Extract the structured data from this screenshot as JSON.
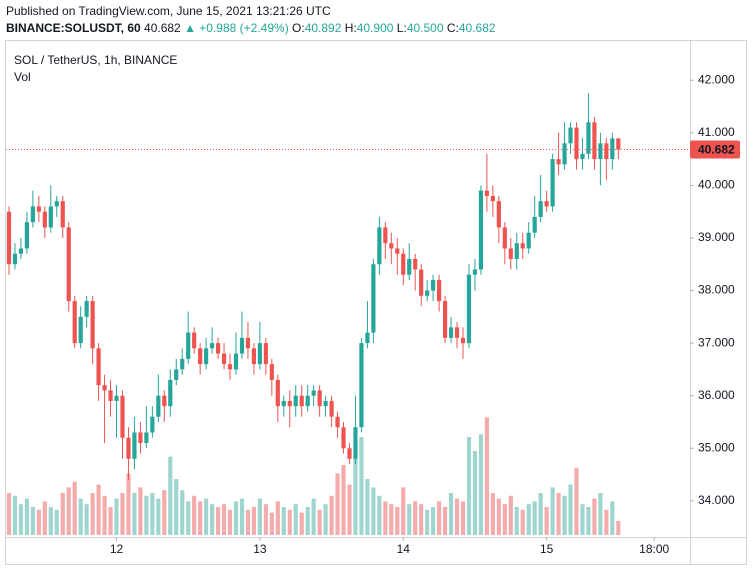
{
  "header": {
    "published": "Published on TradingView.com, June 15, 2021 13:21:26 UTC",
    "symbol": "BINANCE:SOLUSDT, 60",
    "last": "40.682",
    "change": "▲ +0.988 (+2.49%)",
    "ohlc": [
      {
        "label": "O:",
        "value": "40.892"
      },
      {
        "label": "H:",
        "value": "40.900"
      },
      {
        "label": "L:",
        "value": "40.500"
      },
      {
        "label": "C:",
        "value": "40.682"
      }
    ]
  },
  "chart_data": {
    "type": "candlestick",
    "title": "SOL / TetherUS, 1h, BINANCE",
    "volume_label": "Vol",
    "up_color": "#26a69a",
    "down_color": "#ef5350",
    "volume_up_color": "#9fd5cf",
    "volume_down_color": "#f3abab",
    "last_price": 40.682,
    "xlim": [
      -0.5,
      114
    ],
    "xticks": [
      {
        "value": 18,
        "label": "12"
      },
      {
        "value": 42,
        "label": "13"
      },
      {
        "value": 66,
        "label": "14"
      },
      {
        "value": 90,
        "label": "15"
      },
      {
        "value": 108,
        "label": "18:00"
      }
    ],
    "ylim": [
      33.35,
      42.67
    ],
    "yticks": [
      {
        "value": 34,
        "label": "34.000"
      },
      {
        "value": 35,
        "label": "35.000"
      },
      {
        "value": 36,
        "label": "36.000"
      },
      {
        "value": 37,
        "label": "37.000"
      },
      {
        "value": 38,
        "label": "38.000"
      },
      {
        "value": 39,
        "label": "39.000"
      },
      {
        "value": 40,
        "label": "40.000"
      },
      {
        "value": 41,
        "label": "41.000"
      },
      {
        "value": 42,
        "label": "42.000"
      }
    ],
    "vlim": [
      0,
      100
    ],
    "open": [
      39.5,
      38.5,
      38.7,
      38.8,
      39.3,
      39.6,
      39.5,
      39.2,
      39.6,
      39.7,
      39.2,
      37.8,
      37.0,
      37.5,
      37.8,
      36.9,
      36.2,
      36.1,
      35.9,
      36.0,
      35.2,
      34.8,
      35.3,
      35.1,
      35.3,
      35.6,
      36.0,
      35.8,
      36.3,
      36.5,
      36.7,
      37.2,
      36.9,
      36.6,
      36.9,
      37.0,
      36.8,
      36.6,
      36.5,
      36.8,
      37.1,
      36.9,
      36.6,
      37.0,
      36.6,
      36.3,
      35.8,
      35.9,
      35.8,
      36.0,
      35.8,
      36.0,
      36.1,
      35.8,
      35.9,
      35.6,
      35.4,
      35.0,
      34.8,
      35.4,
      37.0,
      37.2,
      38.5,
      39.2,
      38.9,
      38.8,
      38.7,
      38.3,
      38.6,
      38.4,
      37.9,
      38.0,
      38.2,
      37.8,
      37.1,
      37.3,
      37.1,
      37.0,
      38.3,
      38.4,
      39.9,
      39.8,
      39.7,
      39.2,
      38.8,
      38.6,
      38.9,
      38.8,
      39.1,
      39.4,
      39.7,
      39.6,
      40.5,
      40.4,
      40.8,
      41.1,
      40.5,
      40.6,
      41.2,
      40.5,
      40.8,
      40.5,
      40.892
    ],
    "high": [
      39.6,
      38.9,
      39.0,
      39.5,
      39.9,
      39.8,
      39.6,
      40.0,
      39.8,
      39.8,
      39.3,
      37.9,
      37.7,
      37.9,
      37.9,
      37.0,
      36.4,
      36.3,
      36.2,
      36.1,
      35.4,
      35.6,
      35.5,
      35.8,
      35.8,
      36.4,
      36.1,
      36.5,
      36.7,
      36.9,
      37.6,
      37.3,
      37.0,
      37.1,
      37.3,
      37.1,
      37.0,
      36.8,
      37.2,
      37.6,
      37.4,
      37.0,
      37.4,
      37.1,
      36.7,
      36.4,
      36.0,
      36.1,
      36.2,
      36.2,
      36.2,
      36.2,
      36.2,
      36.0,
      36.0,
      35.7,
      35.5,
      35.1,
      36.0,
      37.1,
      37.8,
      38.6,
      39.4,
      39.3,
      39.1,
      39.0,
      38.8,
      38.9,
      38.7,
      38.5,
      38.2,
      38.3,
      38.3,
      37.9,
      37.5,
      37.4,
      37.3,
      38.5,
      38.6,
      40.0,
      40.6,
      40.0,
      39.8,
      39.3,
      39.0,
      39.1,
      39.1,
      39.3,
      39.8,
      40.2,
      39.9,
      40.6,
      41.0,
      41.2,
      41.2,
      41.2,
      40.9,
      41.75,
      41.3,
      41.0,
      40.9,
      41.0,
      40.9
    ],
    "low": [
      38.3,
      38.4,
      38.6,
      38.7,
      39.2,
      39.3,
      39.0,
      39.1,
      39.4,
      39.0,
      37.6,
      36.9,
      36.9,
      37.3,
      36.6,
      35.9,
      35.1,
      35.6,
      35.2,
      34.8,
      34.4,
      34.6,
      34.9,
      35.0,
      35.2,
      35.5,
      35.5,
      35.6,
      36.2,
      36.4,
      36.6,
      36.8,
      36.4,
      36.5,
      36.8,
      36.7,
      36.5,
      36.3,
      36.4,
      36.7,
      36.7,
      36.4,
      36.5,
      36.4,
      36.0,
      35.5,
      35.6,
      35.4,
      35.6,
      35.6,
      35.7,
      35.8,
      35.6,
      35.6,
      35.4,
      35.2,
      34.9,
      34.7,
      34.7,
      35.3,
      36.9,
      37.0,
      38.3,
      38.6,
      38.5,
      38.3,
      38.1,
      38.2,
      38.0,
      37.7,
      37.8,
      37.8,
      37.6,
      37.0,
      37.0,
      36.9,
      36.7,
      36.9,
      38.0,
      38.3,
      39.5,
      39.4,
      38.9,
      38.5,
      38.4,
      38.4,
      38.6,
      38.7,
      39.0,
      39.3,
      39.5,
      39.5,
      40.2,
      40.3,
      40.6,
      40.3,
      40.3,
      40.5,
      40.3,
      40.0,
      40.1,
      40.3,
      40.5
    ],
    "close": [
      38.5,
      38.7,
      38.8,
      39.3,
      39.6,
      39.5,
      39.2,
      39.6,
      39.7,
      39.2,
      37.8,
      37.0,
      37.5,
      37.8,
      36.9,
      36.2,
      36.1,
      35.9,
      36.0,
      35.2,
      34.8,
      35.3,
      35.1,
      35.3,
      35.6,
      36.0,
      35.8,
      36.3,
      36.5,
      36.7,
      37.2,
      36.9,
      36.6,
      36.9,
      37.0,
      36.8,
      36.6,
      36.5,
      36.8,
      37.1,
      36.9,
      36.6,
      37.0,
      36.6,
      36.3,
      35.8,
      35.9,
      35.8,
      36.0,
      35.8,
      36.0,
      36.1,
      35.8,
      35.9,
      35.6,
      35.4,
      35.0,
      34.8,
      35.4,
      37.0,
      37.2,
      38.5,
      39.2,
      38.9,
      38.8,
      38.7,
      38.3,
      38.6,
      38.4,
      37.9,
      38.0,
      38.2,
      37.8,
      37.1,
      37.3,
      37.1,
      37.0,
      38.3,
      38.4,
      39.9,
      39.8,
      39.7,
      39.2,
      38.8,
      38.6,
      38.9,
      38.8,
      39.1,
      39.4,
      39.7,
      39.6,
      40.5,
      40.4,
      40.8,
      41.1,
      40.5,
      40.6,
      41.2,
      40.5,
      40.8,
      40.5,
      40.892,
      40.682
    ],
    "volume": [
      30,
      28,
      22,
      26,
      20,
      18,
      24,
      20,
      18,
      30,
      34,
      38,
      26,
      22,
      30,
      36,
      28,
      20,
      26,
      30,
      44,
      30,
      34,
      28,
      30,
      26,
      32,
      56,
      40,
      32,
      24,
      28,
      24,
      26,
      22,
      20,
      22,
      18,
      24,
      26,
      18,
      20,
      26,
      22,
      16,
      24,
      20,
      18,
      22,
      16,
      20,
      26,
      18,
      22,
      28,
      44,
      50,
      36,
      56,
      70,
      40,
      34,
      28,
      24,
      22,
      20,
      34,
      22,
      24,
      22,
      18,
      20,
      24,
      20,
      30,
      26,
      24,
      70,
      60,
      72,
      84,
      30,
      26,
      22,
      28,
      20,
      18,
      22,
      24,
      30,
      20,
      34,
      30,
      28,
      36,
      48,
      22,
      20,
      26,
      30,
      18,
      24,
      10
    ]
  }
}
